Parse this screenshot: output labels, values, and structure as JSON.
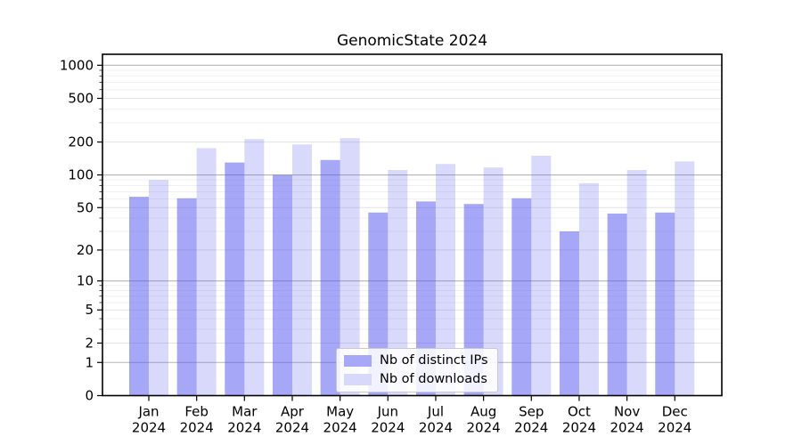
{
  "title": "GenomicState 2024",
  "chart_data": {
    "type": "bar",
    "title": "GenomicState 2024",
    "xlabel": "",
    "ylabel": "",
    "yscale": "log1p",
    "grid": true,
    "legend_position": "lower center",
    "ylim": [
      0,
      1258
    ],
    "yticks": [
      0,
      1,
      2,
      5,
      10,
      20,
      50,
      100,
      200,
      500,
      1000
    ],
    "categories": [
      "Jan 2024",
      "Feb 2024",
      "Mar 2024",
      "Apr 2024",
      "May 2024",
      "Jun 2024",
      "Jul 2024",
      "Aug 2024",
      "Sep 2024",
      "Oct 2024",
      "Nov 2024",
      "Dec 2024"
    ],
    "series": [
      {
        "name": "Nb of distinct IPs",
        "color": "#a8a8f8",
        "base_color": "#5050f0",
        "alpha": 0.5,
        "values": [
          63,
          61,
          130,
          100,
          137,
          45,
          57,
          54,
          61,
          30,
          44,
          45
        ]
      },
      {
        "name": "Nb of downloads",
        "color": "#d8d8fa",
        "base_color": "#5050f0",
        "alpha": 0.22,
        "values": [
          90,
          176,
          213,
          190,
          217,
          111,
          126,
          117,
          150,
          84,
          111,
          133
        ]
      }
    ],
    "colors": {
      "grid_major": "#b5b5b5",
      "grid_labeled_minor": "#e3e3e3",
      "grid_minor": "#f0f0f0",
      "axis": "#000000"
    }
  }
}
